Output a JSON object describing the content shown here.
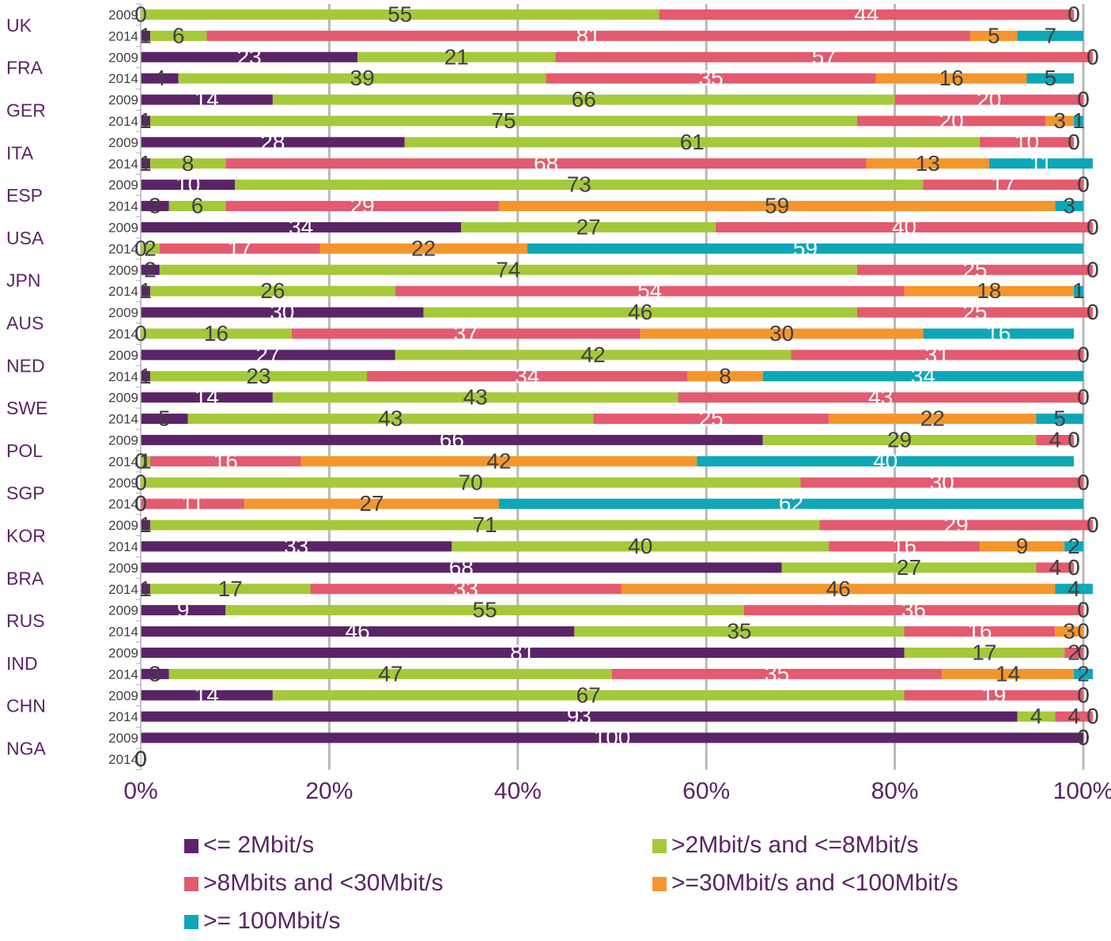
{
  "chart_data": {
    "type": "bar",
    "orientation": "horizontal",
    "stacked": "percent",
    "grid": true,
    "legend_position": "bottom",
    "xlim": [
      0,
      100
    ],
    "x_ticks": [
      "0%",
      "20%",
      "40%",
      "60%",
      "80%",
      "100%"
    ],
    "countries": [
      "UK",
      "FRA",
      "GER",
      "ITA",
      "ESP",
      "USA",
      "JPN",
      "AUS",
      "NED",
      "SWE",
      "POL",
      "SGP",
      "KOR",
      "BRA",
      "RUS",
      "IND",
      "CHN",
      "NGA"
    ],
    "categories": [
      "2009",
      "2014",
      "2009",
      "2014",
      "2009",
      "2014",
      "2009",
      "2014",
      "2009",
      "2014",
      "2009",
      "2014",
      "2009",
      "2014",
      "2009",
      "2014",
      "2009",
      "2014",
      "2009",
      "2014",
      "2009",
      "2014",
      "2009",
      "2014",
      "2009",
      "2014",
      "2009",
      "2014",
      "2009",
      "2014",
      "2009",
      "2014",
      "2009",
      "2014",
      "2009",
      "2014"
    ],
    "series": [
      {
        "name": "<= 2Mbit/s",
        "color": "#5b2466",
        "values": [
          0,
          1,
          23,
          4,
          14,
          1,
          28,
          1,
          10,
          3,
          34,
          0,
          2,
          1,
          30,
          0,
          27,
          1,
          14,
          5,
          66,
          0,
          0,
          0,
          1,
          33,
          68,
          1,
          9,
          46,
          81,
          3,
          14,
          93,
          100,
          0
        ]
      },
      {
        "name": ">2Mbit/s and <=8Mbit/s",
        "color": "#a5c93a",
        "values": [
          55,
          6,
          21,
          39,
          66,
          75,
          61,
          8,
          73,
          6,
          27,
          2,
          74,
          26,
          46,
          16,
          42,
          23,
          43,
          43,
          29,
          1,
          70,
          0,
          71,
          40,
          27,
          17,
          55,
          35,
          17,
          47,
          67,
          4,
          0,
          0
        ]
      },
      {
        "name": ">8Mbits and <30Mbit/s",
        "color": "#e45a6e",
        "values": [
          44,
          81,
          57,
          35,
          20,
          20,
          10,
          68,
          17,
          29,
          40,
          17,
          25,
          54,
          25,
          37,
          31,
          34,
          43,
          25,
          4,
          16,
          30,
          11,
          29,
          16,
          4,
          33,
          36,
          16,
          2,
          35,
          19,
          4,
          0,
          0
        ]
      },
      {
        "name": ">=30Mbit/s and <100Mbit/s",
        "color": "#f5962c",
        "values": [
          0,
          5,
          0,
          16,
          0,
          3,
          0,
          13,
          0,
          59,
          0,
          22,
          0,
          18,
          0,
          30,
          0,
          8,
          0,
          22,
          0,
          42,
          0,
          27,
          0,
          9,
          0,
          46,
          0,
          3,
          0,
          14,
          0,
          0,
          0,
          0
        ]
      },
      {
        "name": ">= 100Mbit/s",
        "color": "#0ea7b8",
        "values": [
          0,
          7,
          0,
          5,
          0,
          1,
          0,
          11,
          0,
          3,
          0,
          59,
          0,
          1,
          0,
          16,
          0,
          34,
          0,
          5,
          0,
          40,
          0,
          62,
          0,
          2,
          0,
          4,
          0,
          0,
          0,
          2,
          0,
          0,
          0,
          0
        ]
      }
    ]
  }
}
